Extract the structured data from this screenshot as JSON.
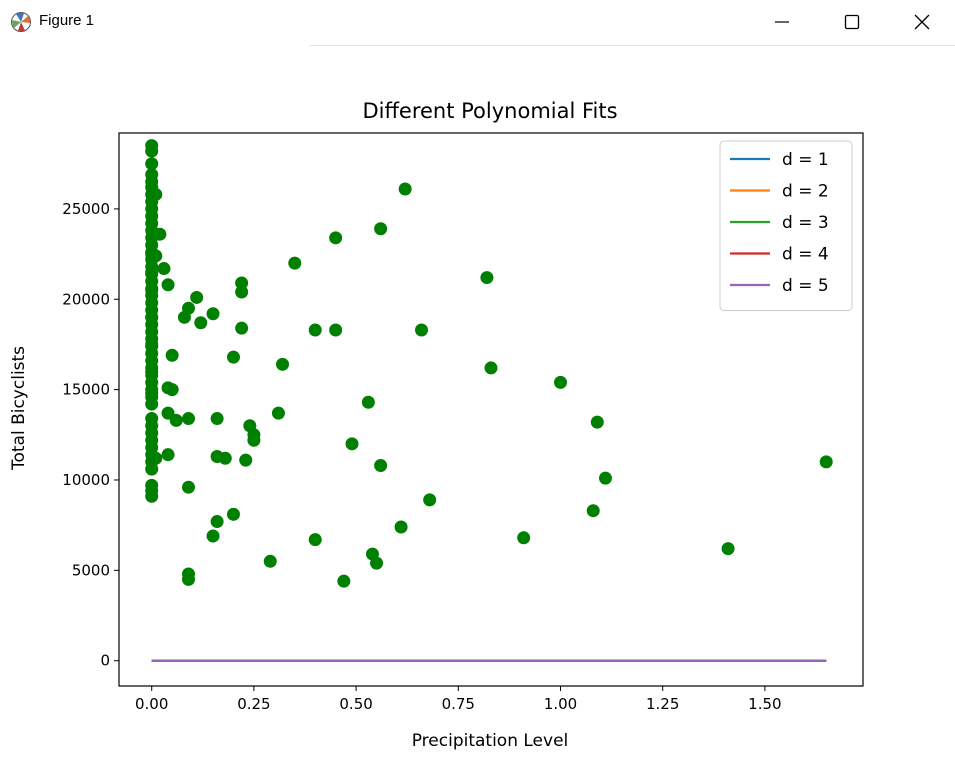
{
  "window": {
    "title": "Figure 1",
    "icons": {
      "app": "matplotlib-icon",
      "minimize": "minimize-icon",
      "maximize": "maximize-icon",
      "close": "close-icon"
    }
  },
  "chart_data": {
    "type": "scatter",
    "title": "Different Polynomial Fits",
    "xlabel": "Precipitation Level",
    "ylabel": "Total Bicyclists",
    "xlim": [
      -0.08,
      1.74
    ],
    "ylim": [
      -1400,
      29200
    ],
    "x_ticks": [
      0.0,
      0.25,
      0.5,
      0.75,
      1.0,
      1.25,
      1.5
    ],
    "x_tick_labels": [
      "0.00",
      "0.25",
      "0.50",
      "0.75",
      "1.00",
      "1.25",
      "1.50"
    ],
    "y_ticks": [
      0,
      5000,
      10000,
      15000,
      20000,
      25000
    ],
    "y_tick_labels": [
      "0",
      "5000",
      "10000",
      "15000",
      "20000",
      "25000"
    ],
    "grid": false,
    "legend_position": "top-right",
    "scatter": {
      "color": "#008000",
      "x": [
        0,
        0,
        0,
        0,
        0,
        0,
        0,
        0,
        0,
        0,
        0,
        0,
        0,
        0,
        0,
        0,
        0,
        0,
        0,
        0,
        0,
        0,
        0,
        0,
        0,
        0,
        0,
        0,
        0,
        0,
        0,
        0,
        0,
        0,
        0,
        0,
        0,
        0,
        0,
        0,
        0,
        0,
        0,
        0,
        0,
        0,
        0,
        0,
        0,
        0,
        0,
        0,
        0,
        0,
        0.01,
        0.01,
        0.01,
        0.02,
        0.03,
        0.04,
        0.04,
        0.05,
        0.05,
        0.04,
        0.04,
        0.06,
        0.08,
        0.09,
        0.09,
        0.11,
        0.12,
        0.15,
        0.09,
        0.09,
        0.09,
        0.16,
        0.16,
        0.16,
        0.15,
        0.18,
        0.2,
        0.2,
        0.22,
        0.22,
        0.22,
        0.23,
        0.24,
        0.25,
        0.25,
        0.29,
        0.31,
        0.32,
        0.35,
        0.4,
        0.4,
        0.45,
        0.45,
        0.47,
        0.49,
        0.53,
        0.54,
        0.55,
        0.56,
        0.56,
        0.61,
        0.62,
        0.66,
        0.68,
        0.82,
        0.83,
        0.91,
        1.0,
        1.08,
        1.09,
        1.11,
        1.41,
        1.65
      ],
      "y": [
        28500,
        28200,
        27500,
        26900,
        26500,
        26200,
        25800,
        25400,
        25000,
        24600,
        24200,
        23800,
        23400,
        23000,
        22600,
        22200,
        21800,
        21400,
        21000,
        20600,
        20200,
        19800,
        19400,
        19000,
        18600,
        18200,
        17800,
        17400,
        17000,
        16600,
        16200,
        15800,
        15400,
        15000,
        14600,
        14200,
        13400,
        13000,
        12600,
        12200,
        11800,
        11400,
        11000,
        10600,
        9700,
        9400,
        9100,
        22500,
        21500,
        20500,
        19000,
        17500,
        16000,
        14800,
        25800,
        22400,
        11200,
        23600,
        21700,
        20800,
        11400,
        16900,
        15000,
        15100,
        13700,
        13300,
        19000,
        19500,
        13400,
        20100,
        18700,
        19200,
        9600,
        4800,
        4500,
        13400,
        11300,
        7700,
        6900,
        11200,
        16800,
        8100,
        20900,
        20400,
        18400,
        11100,
        13000,
        12500,
        12200,
        5500,
        13700,
        16400,
        22000,
        18300,
        6700,
        23400,
        18300,
        4400,
        12000,
        14300,
        5900,
        5400,
        23900,
        10800,
        7400,
        26100,
        18300,
        8900,
        21200,
        16200,
        6800,
        15400,
        8300,
        13200,
        10100,
        6200,
        11000
      ]
    },
    "series": [
      {
        "name": "d = 1",
        "color": "#1f77b4",
        "x": [
          0,
          1.65
        ],
        "y": [
          0,
          0
        ]
      },
      {
        "name": "d = 2",
        "color": "#ff7f0e",
        "x": [
          0,
          1.65
        ],
        "y": [
          0,
          0
        ]
      },
      {
        "name": "d = 3",
        "color": "#2ca02c",
        "x": [
          0,
          1.65
        ],
        "y": [
          0,
          0
        ]
      },
      {
        "name": "d = 4",
        "color": "#d62728",
        "x": [
          0,
          1.65
        ],
        "y": [
          0,
          0
        ]
      },
      {
        "name": "d = 5",
        "color": "#9467bd",
        "x": [
          0,
          1.65
        ],
        "y": [
          0,
          0
        ]
      }
    ]
  }
}
